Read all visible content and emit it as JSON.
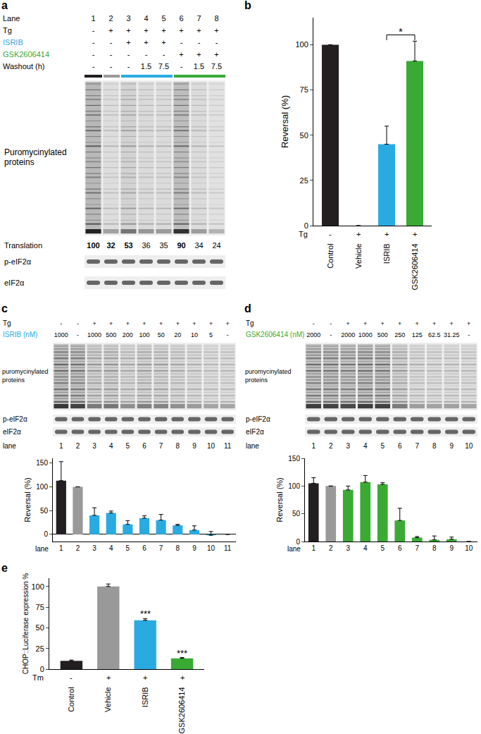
{
  "panel_labels": [
    "a",
    "b",
    "c",
    "d",
    "e"
  ],
  "blot_a": {
    "header_rows": [
      {
        "label": "Lane",
        "values": [
          1,
          2,
          3,
          4,
          5,
          6,
          7,
          8
        ]
      },
      {
        "label": "Tg",
        "values": [
          "-",
          "+",
          "+",
          "+",
          "+",
          "+",
          "+",
          "+"
        ]
      },
      {
        "label": "ISRIB",
        "color": "#29abe2",
        "values": [
          "-",
          "-",
          "+",
          "+",
          "+",
          "-",
          "-",
          "-"
        ]
      },
      {
        "label": "GSK2606414",
        "color": "#3aaa35",
        "values": [
          "-",
          "-",
          "-",
          "-",
          "-",
          "+",
          "+",
          "+"
        ]
      },
      {
        "label": "Washout (h)",
        "values": [
          "-",
          "-",
          "-",
          1.5,
          7.5,
          "-",
          1.5,
          7.5
        ]
      }
    ],
    "lane_colors": [
      "#231f20",
      "#999999",
      "#29abe2",
      "#29abe2",
      "#29abe2",
      "#3aaa35",
      "#3aaa35",
      "#3aaa35"
    ],
    "blot_label": [
      "Puromycinylated",
      "proteins"
    ],
    "translation": {
      "label": "Translation",
      "values": [
        100,
        32,
        53,
        36,
        35,
        90,
        34,
        24
      ],
      "bold": [
        true,
        true,
        true,
        false,
        false,
        true,
        false,
        false
      ]
    },
    "bands": [
      "p-eIF2α",
      "eIF2α"
    ]
  },
  "blot_c": {
    "header_rows": [
      {
        "label": "Tg",
        "values": [
          "-",
          "-",
          "+",
          "+",
          "+",
          "+",
          "+",
          "+",
          "+",
          "+",
          "+"
        ]
      },
      {
        "label": "ISRIB (nM)",
        "color": "#29abe2",
        "values": [
          1000,
          "-",
          1000,
          500,
          200,
          100,
          50,
          20,
          10,
          5,
          "-"
        ]
      }
    ],
    "blot_label": [
      "puromycinylated",
      "proteins"
    ],
    "bands": [
      "p-eIF2α",
      "eIF2α"
    ],
    "lane_row": {
      "label": "lane",
      "values": [
        1,
        2,
        3,
        4,
        5,
        6,
        7,
        8,
        9,
        10,
        11
      ]
    }
  },
  "blot_d": {
    "header_rows": [
      {
        "label": "Tg",
        "values": [
          "-",
          "-",
          "+",
          "+",
          "+",
          "+",
          "+",
          "+",
          "+",
          "+"
        ]
      },
      {
        "label": "GSK2606414 (nM)",
        "color": "#3aaa35",
        "values": [
          2000,
          "-",
          2000,
          1000,
          500,
          250,
          125,
          62.5,
          31.25,
          "-"
        ]
      }
    ],
    "blot_label": [
      "puromycinylated",
      "proteins"
    ],
    "bands": [
      "p-eIF2α",
      "eIF2α"
    ],
    "lane_row": {
      "label": "lane",
      "values": [
        1,
        2,
        3,
        4,
        5,
        6,
        7,
        8,
        9,
        10
      ]
    }
  },
  "chart_data": [
    {
      "type": "bar",
      "categories": [
        "Control",
        "Vehicle",
        "ISRIB",
        "GSK2606414"
      ],
      "values": [
        100,
        0,
        45,
        91
      ],
      "errors": [
        0,
        0,
        10,
        11
      ],
      "colors": [
        "#231f20",
        "#999999",
        "#29abe2",
        "#3aaa35"
      ],
      "y_label": "Reversal (%)",
      "ylim": [
        0,
        115
      ],
      "yticks": [
        0,
        25,
        50,
        75,
        100
      ],
      "sub_rows": [
        {
          "label": "Tg",
          "values": [
            "-",
            "+",
            "+",
            "+"
          ]
        }
      ],
      "annotations": [
        {
          "text": "*",
          "between": [
            "ISRIB",
            "GSK2606414"
          ]
        }
      ]
    },
    {
      "type": "bar",
      "categories": [
        1,
        2,
        3,
        4,
        5,
        6,
        7,
        8,
        9,
        10,
        11
      ],
      "values": [
        113,
        100,
        40,
        45,
        21,
        34,
        30,
        19,
        9,
        -2,
        0
      ],
      "errors": [
        40,
        0,
        16,
        4,
        8,
        5,
        12,
        2,
        9,
        8,
        0
      ],
      "colors": [
        "#231f20",
        "#999999",
        "#29abe2",
        "#29abe2",
        "#29abe2",
        "#29abe2",
        "#29abe2",
        "#29abe2",
        "#29abe2",
        "#29abe2",
        "#29abe2"
      ],
      "y_label": "Reversal (%)",
      "x_label": "lane",
      "ylim": [
        -15,
        160
      ],
      "yticks": [
        0,
        50,
        100,
        150
      ]
    },
    {
      "type": "bar",
      "categories": [
        1,
        2,
        3,
        4,
        5,
        6,
        7,
        8,
        9,
        10
      ],
      "values": [
        105,
        100,
        93,
        107,
        103,
        38,
        7,
        3,
        4,
        0
      ],
      "errors": [
        10,
        0,
        7,
        12,
        3,
        22,
        2,
        7,
        4,
        0
      ],
      "colors": [
        "#231f20",
        "#999999",
        "#3aaa35",
        "#3aaa35",
        "#3aaa35",
        "#3aaa35",
        "#3aaa35",
        "#3aaa35",
        "#3aaa35",
        "#3aaa35"
      ],
      "y_label": "Reversal (%)",
      "x_label": "lane",
      "ylim": [
        0,
        150
      ],
      "yticks": [
        0,
        50,
        100,
        150
      ]
    },
    {
      "type": "bar",
      "categories": [
        "Control",
        "Vehicle",
        "ISRIB",
        "GSK2606414"
      ],
      "values": [
        10,
        100,
        59,
        13
      ],
      "errors": [
        1,
        3,
        2,
        1
      ],
      "colors": [
        "#231f20",
        "#999999",
        "#29abe2",
        "#3aaa35"
      ],
      "y_label": "CHOP::Luciferase expression %",
      "ylim": [
        0,
        110
      ],
      "yticks": [
        0,
        25,
        50,
        75,
        100
      ],
      "sub_rows": [
        {
          "label": "Tm",
          "values": [
            "-",
            "+",
            "+",
            "+"
          ]
        }
      ],
      "annotations": [
        {
          "text": "***",
          "category": "ISRIB"
        },
        {
          "text": "***",
          "category": "GSK2606414"
        }
      ]
    }
  ]
}
